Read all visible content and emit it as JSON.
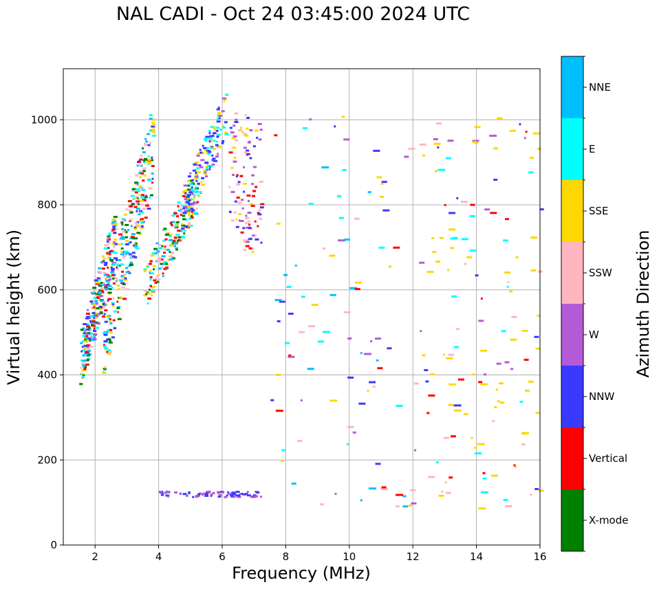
{
  "chart_data": {
    "type": "scatter",
    "title": "NAL CADI - Oct 24 03:45:00 2024 UTC",
    "xlabel": "Frequency (MHz)",
    "ylabel": "Virtual height (km)",
    "xlim": [
      1,
      16
    ],
    "ylim": [
      0,
      1120
    ],
    "xticks": [
      2,
      4,
      6,
      8,
      10,
      12,
      14,
      16
    ],
    "yticks": [
      0,
      200,
      400,
      600,
      800,
      1000
    ],
    "grid": true,
    "colorbar": {
      "label": "Azimuth Direction",
      "categories": [
        {
          "name": "X-mode",
          "color": "#008000"
        },
        {
          "name": "Vertical",
          "color": "#ff0000"
        },
        {
          "name": "NNW",
          "color": "#3a3aff"
        },
        {
          "name": "W",
          "color": "#b55ad6"
        },
        {
          "name": "SSW",
          "color": "#ffb6c1"
        },
        {
          "name": "SSE",
          "color": "#ffd700"
        },
        {
          "name": "E",
          "color": "#00ffff"
        },
        {
          "name": "NNE",
          "color": "#00bfff"
        }
      ]
    },
    "clusters": [
      {
        "name": "o-trace-low",
        "f": [
          1.5,
          2.6
        ],
        "h": [
          410,
          700
        ],
        "shape": "diag",
        "count": 260,
        "colors": [
          "Vertical",
          "SSE",
          "SSW",
          "E",
          "NNE",
          "NNW",
          "X-mode",
          "W"
        ]
      },
      {
        "name": "o-trace-mid",
        "f": [
          2.2,
          3.8
        ],
        "h": [
          450,
          900
        ],
        "shape": "diag",
        "count": 300,
        "colors": [
          "NNE",
          "E",
          "SSW",
          "Vertical",
          "X-mode",
          "SSE",
          "NNW"
        ]
      },
      {
        "name": "o-trace-upper",
        "f": [
          3.5,
          5.2
        ],
        "h": [
          580,
          820
        ],
        "shape": "diag",
        "count": 200,
        "colors": [
          "E",
          "NNE",
          "SSE",
          "X-mode",
          "Vertical",
          "SSW"
        ]
      },
      {
        "name": "nnw-high",
        "f": [
          4.7,
          6.1
        ],
        "h": [
          760,
          1000
        ],
        "shape": "diag",
        "count": 170,
        "colors": [
          "NNW",
          "NNW",
          "W",
          "E",
          "SSE"
        ]
      },
      {
        "name": "w-cluster",
        "f": [
          6.2,
          7.2
        ],
        "h": [
          690,
          1020
        ],
        "shape": "box",
        "count": 110,
        "colors": [
          "W",
          "NNW",
          "SSW",
          "SSE",
          "Vertical"
        ]
      },
      {
        "name": "e-layer",
        "f": [
          4.0,
          7.2
        ],
        "h": [
          115,
          128
        ],
        "shape": "box",
        "count": 75,
        "colors": [
          "NNW",
          "W",
          "NNW",
          "W"
        ]
      },
      {
        "name": "scatter-mid",
        "f": [
          7.5,
          12.2
        ],
        "h": [
          85,
          1020
        ],
        "shape": "box",
        "count": 95,
        "colors": [
          "E",
          "W",
          "NNW",
          "Vertical",
          "SSE",
          "SSW",
          "NNE"
        ]
      },
      {
        "name": "scatter-right",
        "f": [
          12.2,
          16
        ],
        "h": [
          85,
          1010
        ],
        "shape": "box",
        "count": 135,
        "colors": [
          "SSE",
          "SSE",
          "SSE",
          "W",
          "Vertical",
          "SSW",
          "NNW",
          "E"
        ]
      }
    ]
  }
}
